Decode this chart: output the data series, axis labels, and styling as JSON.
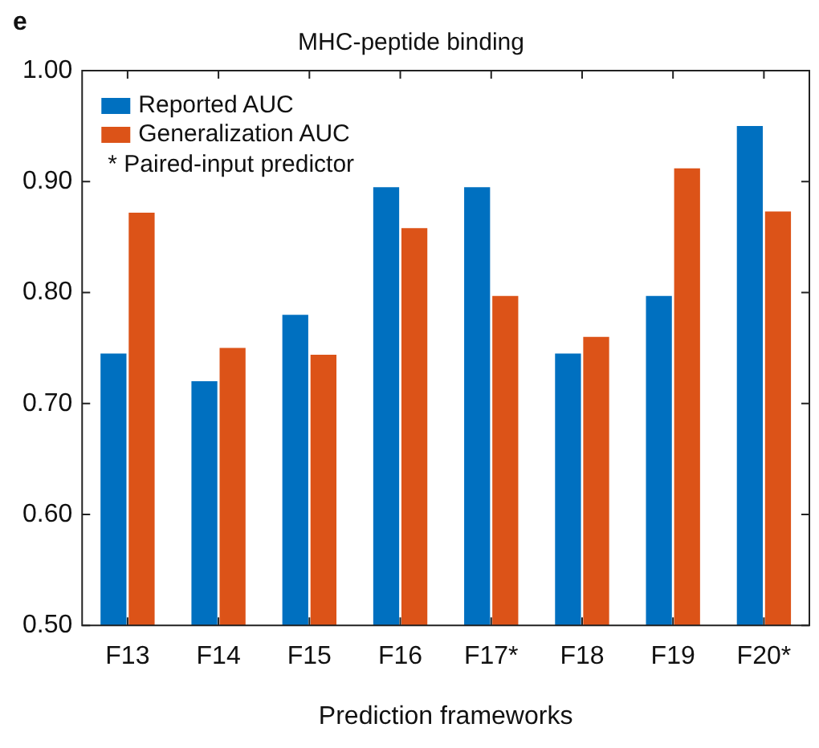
{
  "chart_data": {
    "type": "bar",
    "title": "MHC-peptide binding",
    "xlabel": "Prediction frameworks",
    "annotations": [
      "e",
      "* Paired-input predictor"
    ],
    "categories": [
      "F13",
      "F14",
      "F15",
      "F16",
      "F17*",
      "F18",
      "F19",
      "F20*"
    ],
    "series": [
      {
        "name": "Reported AUC",
        "color": "#0070c0",
        "values": [
          0.745,
          0.72,
          0.78,
          0.895,
          0.895,
          0.745,
          0.797,
          0.95
        ]
      },
      {
        "name": "Generalization AUC",
        "color": "#dc5318",
        "values": [
          0.872,
          0.75,
          0.744,
          0.858,
          0.797,
          0.76,
          0.912,
          0.873
        ]
      }
    ],
    "ylim": [
      0.5,
      1.0
    ],
    "yticks": [
      {
        "value": 0.5,
        "label": "0.50"
      },
      {
        "value": 0.6,
        "label": "0.60"
      },
      {
        "value": 0.7,
        "label": "0.70"
      },
      {
        "value": 0.8,
        "label": "0.80"
      },
      {
        "value": 0.9,
        "label": "0.90"
      },
      {
        "value": 1.0,
        "label": "1.00"
      }
    ],
    "legend": "top left",
    "grid": false
  }
}
